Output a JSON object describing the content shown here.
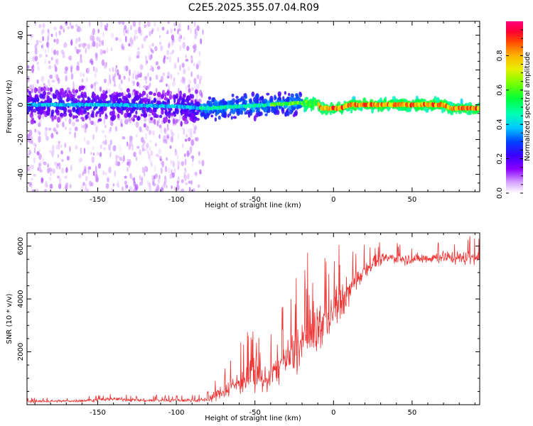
{
  "page_title": "C2E5.2025.355.07.04.R09",
  "chart_data": [
    {
      "type": "heatmap",
      "title": "C2E5.2025.355.07.04.R09",
      "xlabel": "Height of straight line (km)",
      "ylabel": "Frequency (Hz)",
      "xlim": [
        -195,
        93
      ],
      "ylim": [
        -50,
        48
      ],
      "x_ticks": [
        -150,
        -100,
        -50,
        0,
        50
      ],
      "y_ticks": [
        -40,
        -20,
        0,
        20,
        40
      ],
      "trace": [
        {
          "x": -195,
          "f": 0
        },
        {
          "x": -150,
          "f": 0
        },
        {
          "x": -100,
          "f": -1
        },
        {
          "x": -80,
          "f": -2
        },
        {
          "x": -60,
          "f": -1
        },
        {
          "x": -40,
          "f": 0
        },
        {
          "x": -25,
          "f": 1
        },
        {
          "x": -10,
          "f": 1
        },
        {
          "x": -8,
          "f": -2
        },
        {
          "x": 5,
          "f": -2
        },
        {
          "x": 10,
          "f": 0
        },
        {
          "x": 70,
          "f": 0
        },
        {
          "x": 75,
          "f": -2
        },
        {
          "x": 93,
          "f": -2
        }
      ],
      "colorbar": {
        "label": "Normalized spectral amplitude",
        "range": [
          0,
          1
        ],
        "ticks": [
          "0.0",
          "0.2",
          "0.4",
          "0.6",
          "0.8"
        ]
      },
      "x_tick_labels": [
        "-150",
        "-100",
        "-50",
        "0",
        "50"
      ],
      "y_tick_labels": [
        "-40",
        "-20",
        "0",
        "20",
        "40"
      ]
    },
    {
      "type": "line",
      "xlabel": "Height of straight line (km)",
      "ylabel": "SNR (10 * v/v)",
      "xlim": [
        -195,
        93
      ],
      "ylim": [
        0,
        6500
      ],
      "x_ticks": [
        -150,
        -100,
        -50,
        0,
        50
      ],
      "y_ticks": [
        2000,
        4000,
        6000
      ],
      "x_tick_labels": [
        "-150",
        "-100",
        "-50",
        "0",
        "50"
      ],
      "y_tick_labels": [
        "2000",
        "4000",
        "6000"
      ],
      "series": [
        {
          "name": "SNR",
          "color": "#ee3333",
          "x": [
            -195,
            -160,
            -140,
            -120,
            -100,
            -85,
            -80,
            -75,
            -65,
            -55,
            -50,
            -45,
            -40,
            -35,
            -30,
            -25,
            -20,
            -15,
            -10,
            -5,
            0,
            5,
            10,
            15,
            20,
            25,
            30,
            35,
            40,
            50,
            60,
            70,
            80,
            93
          ],
          "mean": [
            120,
            150,
            220,
            160,
            170,
            170,
            210,
            350,
            700,
            1000,
            1100,
            900,
            1100,
            1450,
            1700,
            1950,
            2300,
            2700,
            2900,
            3200,
            3500,
            3900,
            4300,
            4750,
            5150,
            5350,
            5500,
            5550,
            5550,
            5500,
            5550,
            5600,
            5550,
            5600
          ],
          "spread": [
            60,
            70,
            100,
            90,
            90,
            100,
            150,
            300,
            550,
            800,
            900,
            700,
            700,
            1000,
            1100,
            1300,
            1450,
            1500,
            1400,
            1200,
            1100,
            1000,
            800,
            600,
            450,
            350,
            300,
            300,
            300,
            300,
            300,
            350,
            350,
            400
          ]
        }
      ]
    }
  ]
}
